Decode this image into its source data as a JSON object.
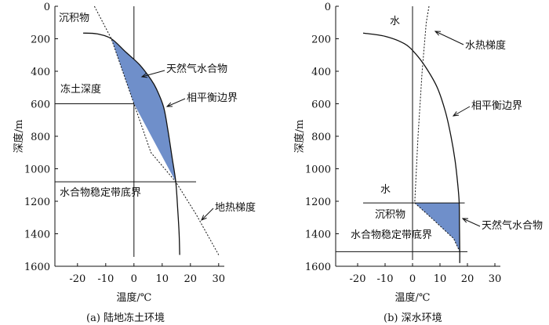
{
  "chart_data": [
    {
      "type": "diagram",
      "caption": "(a) 陆地冻土环境",
      "xlabel": "温度/℃",
      "ylabel": "深度/m",
      "xlim": [
        -28,
        32
      ],
      "ylim": [
        0,
        1600
      ],
      "x_ticks": [
        -20,
        -10,
        0,
        10,
        20,
        30
      ],
      "y_ticks": [
        0,
        200,
        400,
        600,
        800,
        1000,
        1200,
        1400,
        1600
      ],
      "region_labels": {
        "sediment": "沉积物"
      },
      "permafrost_depth": {
        "label": "冻土深度",
        "depth": 600,
        "x_from": -28,
        "x_to": 0
      },
      "hydrate_zone_base": {
        "label": "水合物稳定带底界",
        "depth": 1080,
        "x_from": -28,
        "x_to": 22
      },
      "hydrate_label": "天然气水合物",
      "phase_boundary": {
        "label": "相平衡边界",
        "points": [
          [
            -18,
            165
          ],
          [
            -13,
            170
          ],
          [
            -8,
            200
          ],
          [
            -3,
            280
          ],
          [
            2,
            360
          ],
          [
            6,
            450
          ],
          [
            8,
            510
          ],
          [
            10.5,
            620
          ],
          [
            12,
            760
          ],
          [
            13.5,
            930
          ],
          [
            14.8,
            1080
          ],
          [
            15.5,
            1250
          ],
          [
            16,
            1400
          ],
          [
            16.2,
            1530
          ]
        ]
      },
      "geothermal_gradient": {
        "label": "地热梯度",
        "points": [
          [
            -14,
            0
          ],
          [
            -8,
            200
          ],
          [
            0,
            600
          ],
          [
            6,
            900
          ],
          [
            14.8,
            1080
          ],
          [
            22,
            1280
          ],
          [
            30,
            1530
          ]
        ]
      },
      "hydrate_region": [
        [
          -8,
          200
        ],
        [
          0,
          600
        ],
        [
          14.8,
          1080
        ],
        [
          13.5,
          930
        ],
        [
          12,
          760
        ],
        [
          10.5,
          620
        ],
        [
          8,
          510
        ],
        [
          6,
          450
        ],
        [
          2,
          360
        ],
        [
          -3,
          280
        ]
      ]
    },
    {
      "type": "diagram",
      "caption": "(b) 深水环境",
      "xlabel": "温度/℃",
      "ylabel": "深度/m",
      "xlim": [
        -28,
        32
      ],
      "ylim": [
        0,
        1600
      ],
      "x_ticks": [
        -20,
        -10,
        0,
        10,
        20,
        30
      ],
      "y_ticks": [
        0,
        200,
        400,
        600,
        800,
        1000,
        1200,
        1400,
        1600
      ],
      "region_labels": {
        "water": "水",
        "sediment": "沉积物",
        "water_bottom": "水"
      },
      "seafloor": {
        "depth": 1210,
        "x_from": -18,
        "x_to": 19
      },
      "hydrate_zone_base": {
        "label": "水合物稳定带底界",
        "depth": 1510,
        "x_from": -28,
        "x_to": 20
      },
      "hydrate_label": "天然气水合物",
      "phase_boundary": {
        "label": "相平衡边界",
        "points": [
          [
            -18,
            165
          ],
          [
            -10,
            185
          ],
          [
            -3,
            230
          ],
          [
            1,
            290
          ],
          [
            5,
            380
          ],
          [
            9,
            500
          ],
          [
            12,
            650
          ],
          [
            14,
            800
          ],
          [
            15.5,
            950
          ],
          [
            16.5,
            1100
          ],
          [
            17,
            1210
          ],
          [
            17.1,
            1350
          ],
          [
            17.2,
            1510
          ],
          [
            17.2,
            1580
          ]
        ]
      },
      "hydrothermal_gradient": {
        "label": "水热梯度",
        "points": [
          [
            6,
            0
          ],
          [
            5,
            100
          ],
          [
            3.5,
            400
          ],
          [
            2,
            800
          ],
          [
            0.8,
            1210
          ],
          [
            8,
            1320
          ],
          [
            15,
            1430
          ],
          [
            17.2,
            1510
          ]
        ]
      },
      "hydrate_region": [
        [
          0.8,
          1210
        ],
        [
          17,
          1210
        ],
        [
          17.1,
          1350
        ],
        [
          17.2,
          1510
        ],
        [
          15,
          1430
        ],
        [
          8,
          1320
        ]
      ]
    }
  ]
}
